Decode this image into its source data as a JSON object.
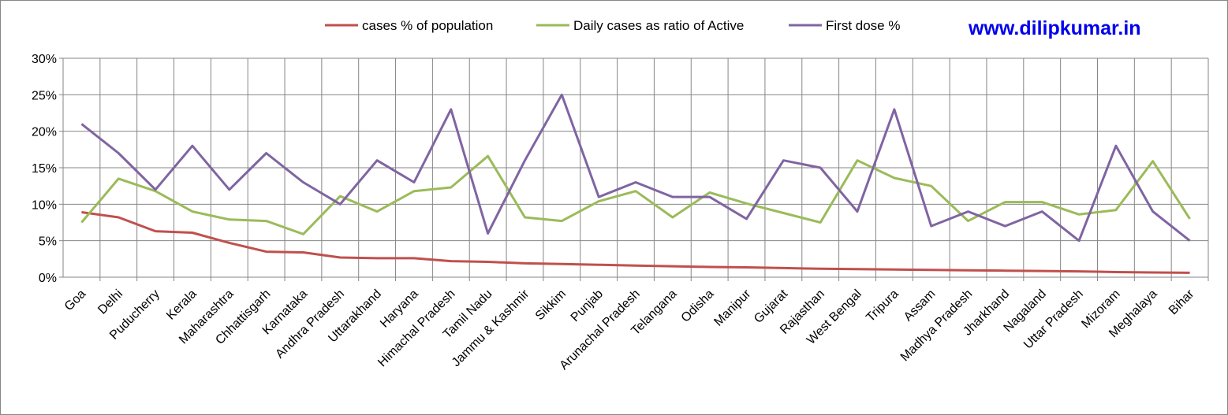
{
  "chart_data": {
    "type": "line",
    "watermark": "www.dilipkumar.in",
    "categories": [
      "Goa",
      "Delhi",
      "Puducherry",
      "Kerala",
      "Maharashtra",
      "Chhattisgarh",
      "Karnataka",
      "Andhra Pradesh",
      "Uttarakhand",
      "Haryana",
      "Himachal Pradesh",
      "Tamil Nadu",
      "Jammu & Kashmir",
      "Sikkim",
      "Punjab",
      "Arunachal Pradesh",
      "Telangana",
      "Odisha",
      "Manipur",
      "Gujarat",
      "Rajasthan",
      "West Bengal",
      "Tripura",
      "Assam",
      "Madhya Pradesh",
      "Jharkhand",
      "Nagaland",
      "Uttar Pradesh",
      "Mizoram",
      "Meghalaya",
      "Bihar"
    ],
    "ylim": [
      0,
      30
    ],
    "yticks": [
      "0%",
      "5%",
      "10%",
      "15%",
      "20%",
      "25%",
      "30%"
    ],
    "ytick_values": [
      0,
      5,
      10,
      15,
      20,
      25,
      30
    ],
    "grid": true,
    "legend_position": "top",
    "series": [
      {
        "name": "cases % of population",
        "color": "#c0504d",
        "values": [
          8.9,
          8.2,
          6.3,
          6.1,
          4.7,
          3.5,
          3.4,
          2.7,
          2.6,
          2.6,
          2.2,
          2.1,
          1.9,
          1.8,
          1.7,
          1.6,
          1.5,
          1.4,
          1.35,
          1.25,
          1.15,
          1.1,
          1.05,
          1.0,
          0.95,
          0.9,
          0.85,
          0.8,
          0.7,
          0.65,
          0.6
        ]
      },
      {
        "name": "Daily cases as ratio of Active",
        "color": "#9bbb59",
        "values": [
          7.5,
          13.5,
          11.8,
          9.0,
          7.9,
          7.7,
          5.9,
          11.1,
          9.0,
          11.8,
          12.3,
          16.6,
          8.2,
          7.7,
          10.4,
          11.8,
          8.2,
          11.6,
          10.1,
          8.8,
          7.5,
          16.0,
          13.6,
          12.5,
          7.7,
          10.3,
          10.3,
          8.6,
          9.2,
          15.9,
          8.0
        ]
      },
      {
        "name": "First dose %",
        "color": "#8064a2",
        "values": [
          21,
          17,
          12,
          18,
          12,
          17,
          13,
          10,
          16,
          13,
          23,
          6,
          16,
          25,
          11,
          13,
          11,
          11,
          8,
          16,
          15,
          9,
          23,
          7,
          9,
          7,
          9,
          5,
          18,
          9,
          5
        ]
      }
    ]
  }
}
